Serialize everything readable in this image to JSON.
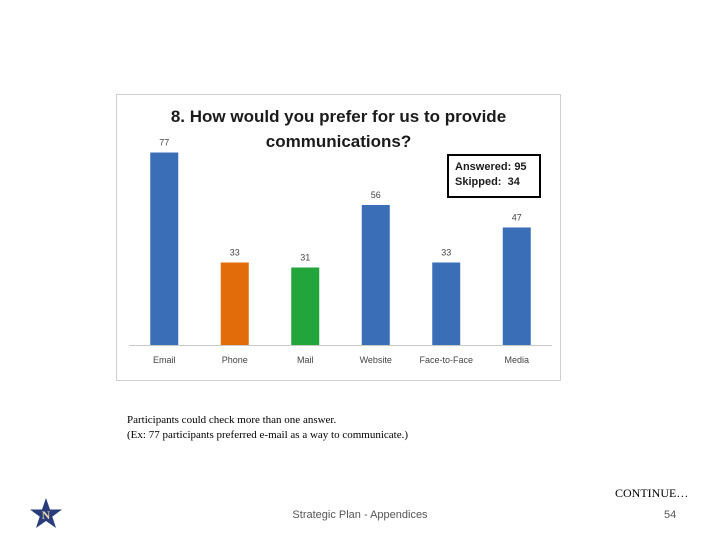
{
  "chart_data": {
    "type": "bar",
    "title_lines": [
      "8. How would you prefer for us to provide",
      "communications?"
    ],
    "categories": [
      "Email",
      "Phone",
      "Mail",
      "Website",
      "Face-to-Face",
      "Media"
    ],
    "values": [
      77,
      33,
      31,
      56,
      33,
      47
    ],
    "colors": [
      "#3a6fb8",
      "#e36c0a",
      "#22a63c",
      "#3a6fb8",
      "#3a6fb8",
      "#3a6fb8"
    ],
    "ylim": [
      0,
      80
    ],
    "grid": false,
    "legend": "none",
    "stats": {
      "answered_label": "Answered:",
      "answered": "95",
      "skipped_label": "Skipped:",
      "skipped": "34"
    }
  },
  "notes": {
    "line1": "Participants could check more than one answer.",
    "line2": "(Ex:  77 participants preferred e-mail as a way to communicate.)"
  },
  "continue_text": "CONTINUE…",
  "footer_text": "Strategic Plan - Appendices",
  "page_number": "54",
  "logo": {
    "icon": "star-icon",
    "letter": "N",
    "color": "#2a3d7a"
  }
}
